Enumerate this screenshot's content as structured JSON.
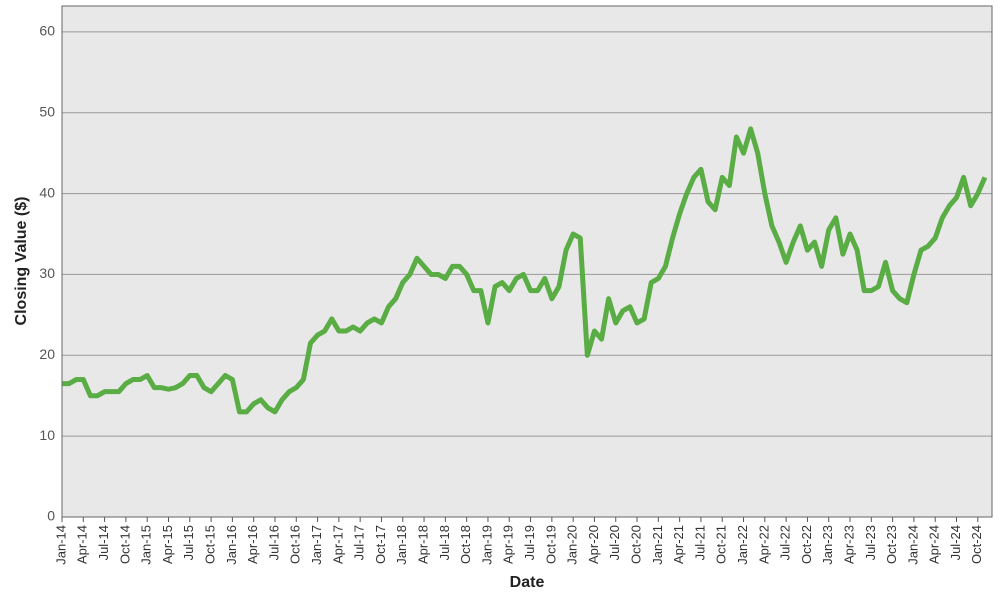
{
  "chart_data": {
    "type": "line",
    "x_label": "Date",
    "y_label": "Closing Value ($)",
    "categories": [
      "Jan-14",
      null,
      null,
      "Apr-14",
      null,
      null,
      "Jul-14",
      null,
      null,
      "Oct-14",
      null,
      null,
      "Jan-15",
      null,
      null,
      "Apr-15",
      null,
      null,
      "Jul-15",
      null,
      null,
      "Oct-15",
      null,
      null,
      "Jan-16",
      null,
      null,
      "Apr-16",
      null,
      null,
      "Jul-16",
      null,
      null,
      "Oct-16",
      null,
      null,
      "Jan-17",
      null,
      null,
      "Apr-17",
      null,
      null,
      "Jul-17",
      null,
      null,
      "Oct-17",
      null,
      null,
      "Jan-18",
      null,
      null,
      "Apr-18",
      null,
      null,
      "Jul-18",
      null,
      null,
      "Oct-18",
      null,
      null,
      "Jan-19",
      null,
      null,
      "Apr-19",
      null,
      null,
      "Jul-19",
      null,
      null,
      "Oct-19",
      null,
      null,
      "Jan-20",
      null,
      null,
      "Apr-20",
      null,
      null,
      "Jul-20",
      null,
      null,
      "Oct-20",
      null,
      null,
      "Jan-21",
      null,
      null,
      "Apr-21",
      null,
      null,
      "Jul-21",
      null,
      null,
      "Oct-21",
      null,
      null,
      "Jan-22",
      null,
      null,
      "Apr-22",
      null,
      null,
      "Jul-22",
      null,
      null,
      "Oct-22",
      null,
      null,
      "Jan-23",
      null,
      null,
      "Apr-23",
      null,
      null,
      "Jul-23",
      null,
      null,
      "Oct-23",
      null,
      null,
      "Jan-24",
      null,
      null,
      "Apr-24",
      null,
      null,
      "Jul-24",
      null,
      null,
      "Oct-24",
      null
    ],
    "values": [
      16.5,
      16.5,
      17,
      17,
      15,
      15,
      15.5,
      15.5,
      15.5,
      16.5,
      17,
      17,
      17.5,
      16,
      16,
      15.8,
      16,
      16.5,
      17.5,
      17.5,
      16,
      15.5,
      16.5,
      17.5,
      17,
      13,
      13,
      14,
      14.5,
      13.5,
      13,
      14.5,
      15.5,
      16,
      17,
      21.5,
      22.5,
      23,
      24.5,
      23,
      23,
      23.5,
      23,
      24,
      24.5,
      24,
      26,
      27,
      29,
      30,
      32,
      31,
      30,
      30,
      29.5,
      31,
      31,
      30,
      28,
      28,
      24,
      28.5,
      29,
      28,
      29.5,
      30,
      28,
      28,
      29.5,
      27,
      28.5,
      33,
      35,
      34.5,
      20,
      23,
      22,
      27,
      24,
      25.5,
      26,
      24,
      24.5,
      29,
      29.5,
      31,
      34.5,
      37.5,
      40,
      42,
      43,
      39,
      38,
      42,
      41,
      47,
      45,
      48,
      45,
      40,
      36,
      34,
      31.5,
      34,
      36,
      33,
      34,
      31,
      35.5,
      37,
      32.5,
      35,
      33,
      28,
      28,
      28.5,
      31.5,
      28,
      27,
      26.5,
      30,
      33,
      33.5,
      34.5,
      37,
      38.5,
      39.5,
      42,
      38.5,
      40,
      42
    ],
    "color": "#5aac44",
    "ylim": [
      0,
      63.2
    ],
    "yticks": [
      0,
      10,
      20,
      30,
      40,
      50,
      60
    ],
    "grid": true
  }
}
